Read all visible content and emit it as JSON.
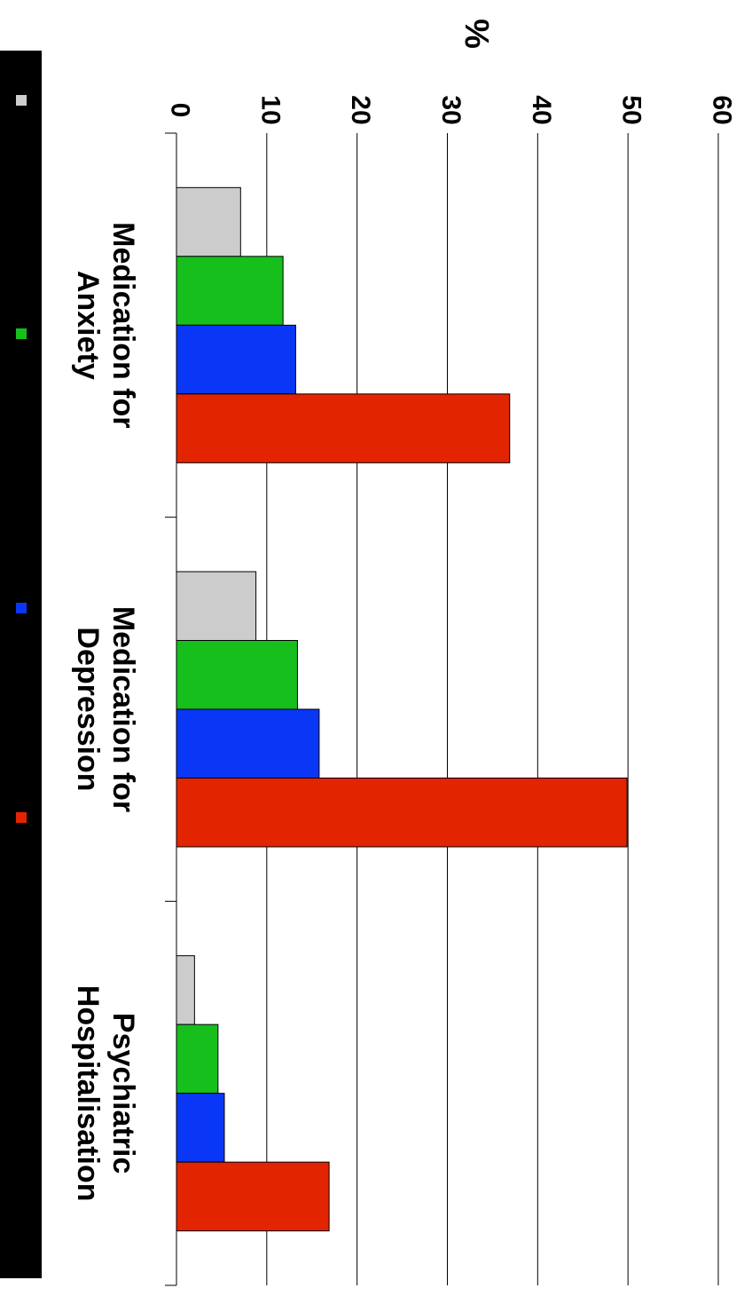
{
  "chart_data": {
    "type": "bar",
    "orientation": "rotated 90deg clockwise; bars grow toward the right",
    "categories": [
      [
        "Medication for",
        "Anxiety"
      ],
      [
        "Medication for",
        "Depression"
      ],
      [
        "Psychiatric",
        "Hospitalisation"
      ]
    ],
    "series": [
      {
        "values": [
          7.1,
          8.8,
          2.0
        ],
        "color": "#cccccc"
      },
      {
        "values": [
          11.8,
          13.4,
          4.6
        ],
        "color": "#17bf1d"
      },
      {
        "values": [
          13.2,
          15.8,
          5.3
        ],
        "color": "#0a36f5"
      },
      {
        "values": [
          36.9,
          49.9,
          16.9
        ],
        "color": "#e32400"
      }
    ],
    "ylabel": "%",
    "ylim": [
      0,
      60
    ],
    "yticks": [
      0,
      10,
      20,
      30,
      40,
      50,
      60
    ],
    "grid": true,
    "legend": {
      "placement": "left strip",
      "background": "#000000",
      "entries": [
        "",
        "",
        "",
        ""
      ]
    }
  }
}
